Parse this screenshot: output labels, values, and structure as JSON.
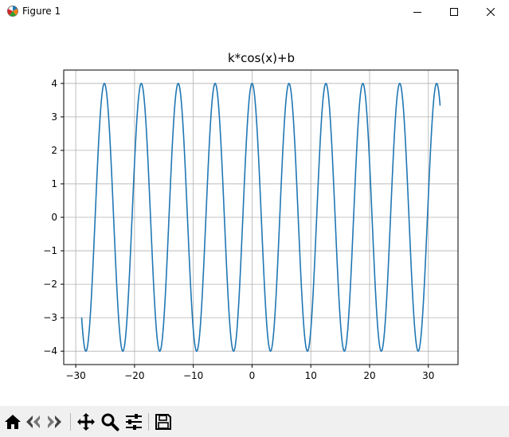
{
  "window": {
    "title": "Figure 1",
    "controls": [
      "minimize-icon",
      "maximize-icon",
      "close-icon"
    ]
  },
  "toolbar": {
    "buttons": [
      "home-icon",
      "back-icon",
      "forward-icon",
      "pan-icon",
      "zoom-icon",
      "configure-subplots-icon",
      "save-icon"
    ]
  },
  "chart_data": {
    "type": "line",
    "title": "k*cos(x)+b",
    "xlabel": "",
    "ylabel": "",
    "function": {
      "k": 4,
      "b": 0
    },
    "x_range": [
      -29,
      32
    ],
    "xlim": [
      -32.05,
      35.05
    ],
    "ylim": [
      -4.4,
      4.4
    ],
    "xticks": [
      -30,
      -20,
      -10,
      0,
      10,
      20,
      30
    ],
    "xtick_labels": [
      "−30",
      "−20",
      "−10",
      "0",
      "10",
      "20",
      "30"
    ],
    "yticks": [
      -4,
      -3,
      -2,
      -1,
      0,
      1,
      2,
      3,
      4
    ],
    "ytick_labels": [
      "−4",
      "−3",
      "−2",
      "−1",
      "0",
      "1",
      "2",
      "3",
      "4"
    ],
    "grid": true,
    "series": [
      {
        "color": "#1f77b4"
      }
    ]
  }
}
